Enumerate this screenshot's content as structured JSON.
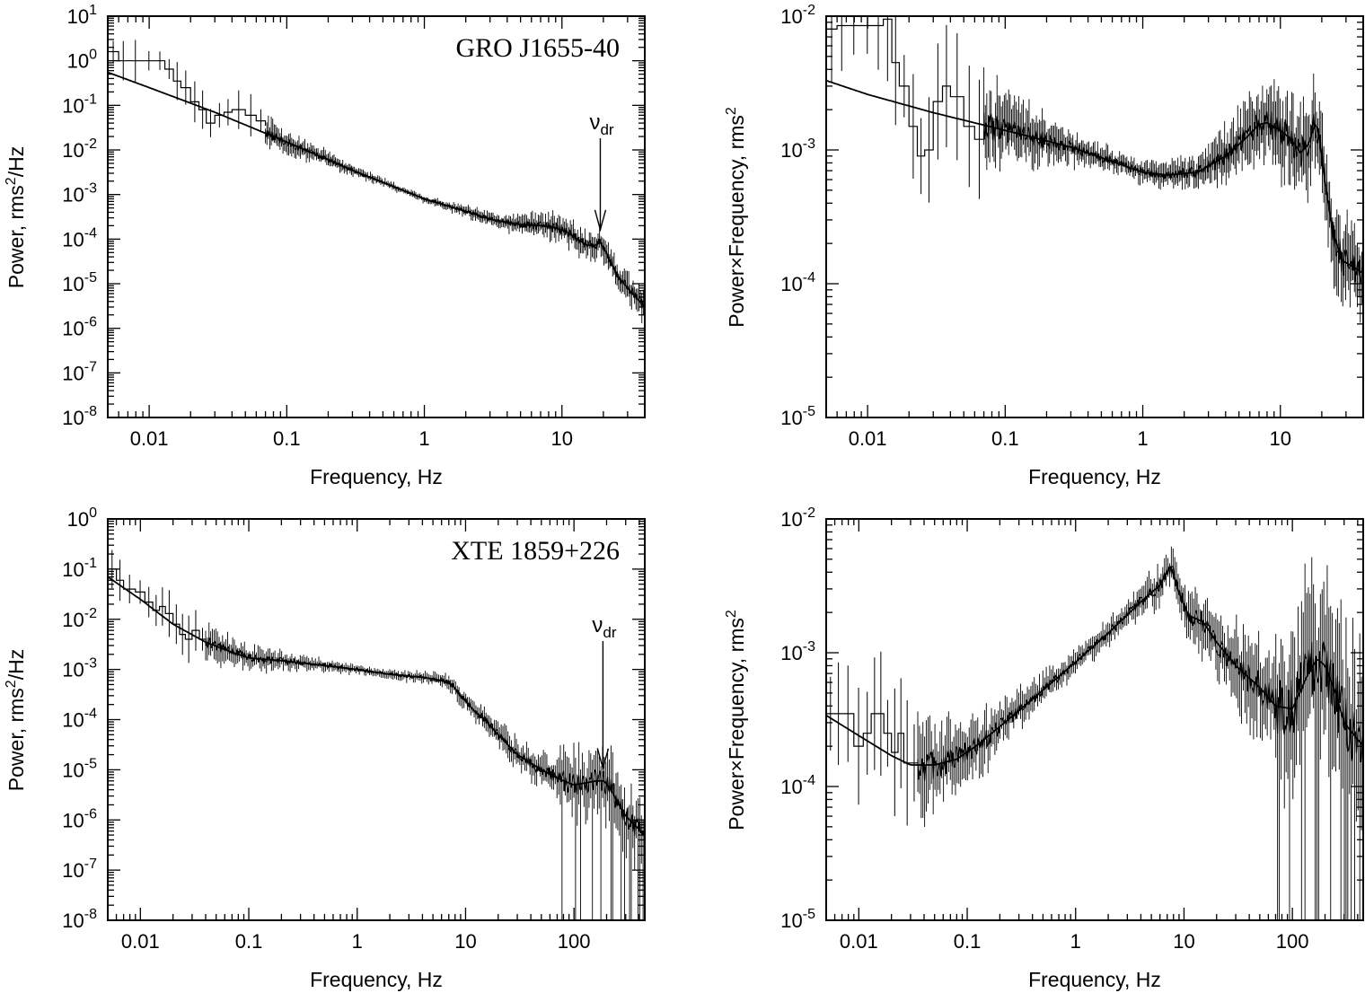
{
  "chart_data": [
    {
      "id": "top-left",
      "type": "line",
      "title": "",
      "annotation": "GRO J1655-40",
      "marker_label": "ν",
      "marker_sub": "dr",
      "marker_frequency": 19,
      "xlabel": "Frequency, Hz",
      "ylabel": "Power, rms²/Hz",
      "xscale": "log",
      "yscale": "log",
      "xlim": [
        0.005,
        40
      ],
      "ylim": [
        1e-08,
        10
      ],
      "x_ticks": [
        {
          "v": 0.01,
          "label": "0.01"
        },
        {
          "v": 0.1,
          "label": "0.1"
        },
        {
          "v": 1,
          "label": "1"
        },
        {
          "v": 10,
          "label": "10"
        }
      ],
      "y_ticks": [
        {
          "v": 10,
          "base": "10",
          "exp": "1"
        },
        {
          "v": 1,
          "base": "10",
          "exp": "0"
        },
        {
          "v": 0.1,
          "base": "10",
          "exp": "-1"
        },
        {
          "v": 0.01,
          "base": "10",
          "exp": "-2"
        },
        {
          "v": 0.001,
          "base": "10",
          "exp": "-3"
        },
        {
          "v": 0.0001,
          "base": "10",
          "exp": "-4"
        },
        {
          "v": 1e-05,
          "base": "10",
          "exp": "-5"
        },
        {
          "v": 1e-06,
          "base": "10",
          "exp": "-6"
        },
        {
          "v": 1e-07,
          "base": "10",
          "exp": "-7"
        },
        {
          "v": 1e-08,
          "base": "10",
          "exp": "-8"
        }
      ],
      "model": {
        "x": [
          0.005,
          0.01,
          0.03,
          0.1,
          0.3,
          1,
          2,
          3,
          5,
          7,
          9,
          11,
          13,
          15,
          17,
          19,
          21,
          25,
          30,
          40
        ],
        "y": [
          0.55,
          0.25,
          0.07,
          0.015,
          0.0035,
          0.0008,
          0.00042,
          0.00028,
          0.00021,
          0.0002,
          0.00018,
          0.00014,
          0.0001,
          7.5e-05,
          7e-05,
          8.5e-05,
          5e-05,
          1.6e-05,
          8e-06,
          3e-06
        ]
      },
      "data_hist": {
        "x": [
          0.005,
          0.006,
          0.007,
          0.009,
          0.011,
          0.013,
          0.015,
          0.017,
          0.02,
          0.023,
          0.026,
          0.03,
          0.035,
          0.04,
          0.05,
          0.06,
          0.07
        ],
        "y": [
          1.6,
          1.0,
          1.0,
          1.0,
          1.0,
          0.65,
          0.35,
          0.25,
          0.12,
          0.08,
          0.04,
          0.06,
          0.07,
          0.08,
          0.06,
          0.045,
          0.035
        ]
      },
      "scatter": 0.22
    },
    {
      "id": "top-right",
      "type": "line",
      "title": "",
      "xlabel": "Frequency, Hz",
      "ylabel_main": "Power×Frequency, rms",
      "ylabel_sup": "2",
      "xscale": "log",
      "yscale": "log",
      "xlim": [
        0.005,
        40
      ],
      "ylim": [
        1e-05,
        0.01
      ],
      "x_ticks": [
        {
          "v": 0.01,
          "label": "0.01"
        },
        {
          "v": 0.1,
          "label": "0.1"
        },
        {
          "v": 1,
          "label": "1"
        },
        {
          "v": 10,
          "label": "10"
        }
      ],
      "y_ticks": [
        {
          "v": 0.01,
          "base": "10",
          "exp": "-2"
        },
        {
          "v": 0.001,
          "base": "10",
          "exp": "-3"
        },
        {
          "v": 0.0001,
          "base": "10",
          "exp": "-4"
        },
        {
          "v": 1e-05,
          "base": "10",
          "exp": "-5"
        }
      ],
      "model": {
        "x": [
          0.005,
          0.01,
          0.03,
          0.1,
          0.3,
          0.6,
          1,
          1.5,
          2.5,
          4,
          5.5,
          7,
          8,
          10,
          12,
          14,
          16,
          18,
          19,
          21,
          24,
          28,
          40
        ],
        "y": [
          0.0033,
          0.0026,
          0.0019,
          0.0014,
          0.00105,
          0.00082,
          0.00068,
          0.00065,
          0.00068,
          0.0009,
          0.0012,
          0.00155,
          0.0016,
          0.0014,
          0.0012,
          0.00095,
          0.0011,
          0.0016,
          0.0013,
          0.0006,
          0.00025,
          0.00015,
          0.00012
        ]
      },
      "data_hist": {
        "x": [
          0.005,
          0.006,
          0.007,
          0.009,
          0.011,
          0.013,
          0.015,
          0.017,
          0.02,
          0.023,
          0.026,
          0.03,
          0.035,
          0.04,
          0.05,
          0.06,
          0.07
        ],
        "y": [
          0.008,
          0.0085,
          0.0085,
          0.0085,
          0.0085,
          0.0095,
          0.0045,
          0.003,
          0.0015,
          0.0009,
          0.001,
          0.0023,
          0.003,
          0.0025,
          0.0015,
          0.0012,
          0.0014
        ]
      },
      "scatter": 0.22
    },
    {
      "id": "bottom-left",
      "type": "line",
      "title": "",
      "annotation": "XTE 1859+226",
      "marker_label": "ν",
      "marker_sub": "dr",
      "marker_frequency": 185,
      "xlabel": "Frequency, Hz",
      "ylabel": "Power, rms²/Hz",
      "xscale": "log",
      "yscale": "log",
      "xlim": [
        0.005,
        450
      ],
      "ylim": [
        1e-08,
        1
      ],
      "x_ticks": [
        {
          "v": 0.01,
          "label": "0.01"
        },
        {
          "v": 0.1,
          "label": "0.1"
        },
        {
          "v": 1,
          "label": "1"
        },
        {
          "v": 10,
          "label": "10"
        },
        {
          "v": 100,
          "label": "100"
        }
      ],
      "y_ticks": [
        {
          "v": 1,
          "base": "10",
          "exp": "0"
        },
        {
          "v": 0.1,
          "base": "10",
          "exp": "-1"
        },
        {
          "v": 0.01,
          "base": "10",
          "exp": "-2"
        },
        {
          "v": 0.001,
          "base": "10",
          "exp": "-3"
        },
        {
          "v": 0.0001,
          "base": "10",
          "exp": "-4"
        },
        {
          "v": 1e-05,
          "base": "10",
          "exp": "-5"
        },
        {
          "v": 1e-06,
          "base": "10",
          "exp": "-6"
        },
        {
          "v": 1e-07,
          "base": "10",
          "exp": "-7"
        },
        {
          "v": 1e-08,
          "base": "10",
          "exp": "-8"
        }
      ],
      "model": {
        "x": [
          0.005,
          0.01,
          0.02,
          0.04,
          0.07,
          0.1,
          0.2,
          0.5,
          1,
          2,
          4,
          6,
          7.5,
          9,
          12,
          15,
          20,
          30,
          50,
          80,
          100,
          130,
          160,
          190,
          220,
          260,
          300,
          450
        ],
        "y": [
          0.07,
          0.025,
          0.008,
          0.0035,
          0.0022,
          0.0017,
          0.0015,
          0.0012,
          0.001,
          0.0008,
          0.0007,
          0.0006,
          0.0005,
          0.0003,
          0.00015,
          0.0001,
          5e-05,
          2e-05,
          1e-05,
          6e-06,
          5e-06,
          5.5e-06,
          6e-06,
          6e-06,
          4e-06,
          2e-06,
          1.2e-06,
          5e-07
        ]
      },
      "data_hist": {
        "x": [
          0.005,
          0.006,
          0.007,
          0.009,
          0.011,
          0.013,
          0.015,
          0.017,
          0.02,
          0.023,
          0.026,
          0.03,
          0.035,
          0.04
        ],
        "y": [
          0.1,
          0.06,
          0.04,
          0.035,
          0.022,
          0.015,
          0.018,
          0.013,
          0.008,
          0.005,
          0.004,
          0.006,
          0.004,
          0.003
        ]
      },
      "scatter": 0.25,
      "spike_from": 70
    },
    {
      "id": "bottom-right",
      "type": "line",
      "title": "",
      "xlabel": "Frequency, Hz",
      "ylabel_main": "Power×Frequency, rms",
      "ylabel_sup": "2",
      "xscale": "log",
      "yscale": "log",
      "xlim": [
        0.005,
        450
      ],
      "ylim": [
        1e-05,
        0.01
      ],
      "x_ticks": [
        {
          "v": 0.01,
          "label": "0.01"
        },
        {
          "v": 0.1,
          "label": "0.1"
        },
        {
          "v": 1,
          "label": "1"
        },
        {
          "v": 10,
          "label": "10"
        },
        {
          "v": 100,
          "label": "100"
        }
      ],
      "y_ticks": [
        {
          "v": 0.01,
          "base": "10",
          "exp": "-2"
        },
        {
          "v": 0.001,
          "base": "10",
          "exp": "-3"
        },
        {
          "v": 0.0001,
          "base": "10",
          "exp": "-4"
        },
        {
          "v": 1e-05,
          "base": "10",
          "exp": "-5"
        }
      ],
      "model": {
        "x": [
          0.005,
          0.01,
          0.02,
          0.03,
          0.05,
          0.08,
          0.12,
          0.2,
          0.4,
          1,
          2,
          4,
          6,
          7.5,
          9,
          11,
          15,
          20,
          30,
          50,
          70,
          100,
          140,
          170,
          200,
          250,
          300,
          450
        ],
        "y": [
          0.00034,
          0.00024,
          0.00017,
          0.000145,
          0.000145,
          0.00016,
          0.0002,
          0.00028,
          0.00045,
          0.00085,
          0.0014,
          0.0024,
          0.0032,
          0.0045,
          0.0028,
          0.0019,
          0.0017,
          0.0012,
          0.0008,
          0.00055,
          0.0004,
          0.00038,
          0.0007,
          0.0009,
          0.0008,
          0.0005,
          0.0003,
          0.0002
        ]
      },
      "data_hist": {
        "x": [
          0.005,
          0.006,
          0.007,
          0.009,
          0.011,
          0.013,
          0.015,
          0.017,
          0.02,
          0.023,
          0.026,
          0.03,
          0.035
        ],
        "y": [
          0.00035,
          0.00035,
          0.00035,
          0.0002,
          0.00025,
          0.00035,
          0.00035,
          0.00025,
          0.00018,
          0.00025,
          0.00015,
          0.00015,
          0.00016
        ]
      },
      "scatter": 0.25,
      "spike_from": 70
    }
  ]
}
